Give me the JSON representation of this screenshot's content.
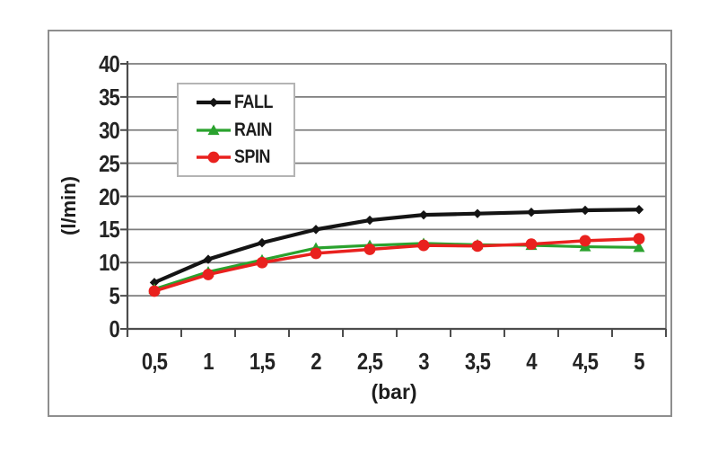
{
  "figure": {
    "background": "#ffffff",
    "frame_border_color": "#8e8e8e"
  },
  "chart_data": {
    "type": "line",
    "title": "",
    "xlabel": "(bar)",
    "ylabel": "(l/min)",
    "x": [
      0.5,
      1,
      1.5,
      2,
      2.5,
      3,
      3.5,
      4,
      4.5,
      5
    ],
    "categories": [
      "0,5",
      "1",
      "1,5",
      "2",
      "2,5",
      "3",
      "3,5",
      "4",
      "4,5",
      "5"
    ],
    "ylim": [
      0,
      40
    ],
    "yticks": [
      0,
      5,
      10,
      15,
      20,
      25,
      30,
      35,
      40
    ],
    "ytick_labels": [
      "0",
      "5",
      "10",
      "15",
      "20",
      "25",
      "30",
      "35",
      "40"
    ],
    "grid": true,
    "legend": {
      "position": "upper-left-inside",
      "border_color": "#b4b4b4"
    },
    "colors": {
      "grid": "#7d7d7d",
      "axis": "#4d4d4d",
      "text": "#242424"
    },
    "series": [
      {
        "name": "FALL",
        "color": "#141414",
        "marker": "diamond",
        "values": [
          7.0,
          10.5,
          13.0,
          15.0,
          16.4,
          17.2,
          17.4,
          17.6,
          17.9,
          18.0
        ]
      },
      {
        "name": "RAIN",
        "color": "#2aa22e",
        "marker": "triangle",
        "values": [
          6.0,
          8.6,
          10.4,
          12.2,
          12.6,
          12.9,
          12.7,
          12.6,
          12.4,
          12.3
        ]
      },
      {
        "name": "SPIN",
        "color": "#e9211e",
        "marker": "circle",
        "values": [
          5.7,
          8.2,
          10.0,
          11.4,
          12.0,
          12.6,
          12.5,
          12.8,
          13.3,
          13.6
        ]
      }
    ]
  }
}
